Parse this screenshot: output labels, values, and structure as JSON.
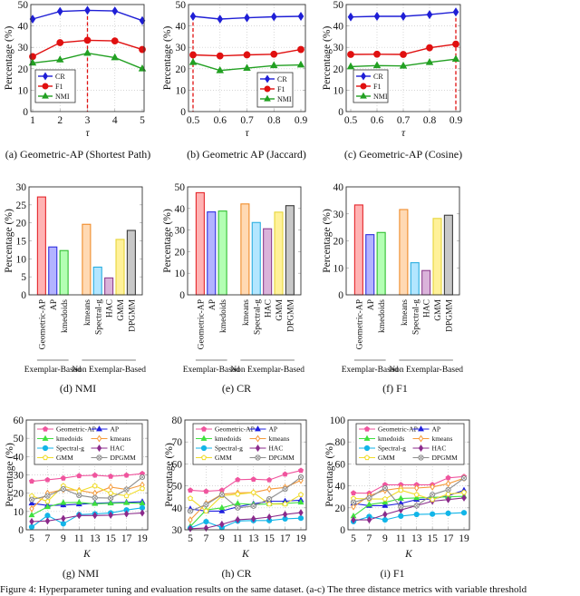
{
  "figure_caption": "Figure 4: Hyperparameter tuning and evaluation results on the same dataset. (a-c) The three distance metrics with variable threshold",
  "chart_data": [
    {
      "type": "line",
      "caption": "(a) Geometric-AP (Shortest Path)",
      "xlabel": "τ",
      "ylabel": "Percentage (%)",
      "x": [
        1,
        2,
        3,
        4,
        5
      ],
      "xticks": [
        "1",
        "2",
        "3",
        "4",
        "5"
      ],
      "xlim": [
        1,
        5
      ],
      "ylim": [
        0,
        50
      ],
      "yticks": [
        0,
        10,
        20,
        30,
        40,
        50
      ],
      "grid": true,
      "legend": "bottom-left",
      "highlight_x": 3,
      "series": [
        {
          "name": "CR",
          "values": [
            43.2,
            46.8,
            47.3,
            47.0,
            42.5
          ],
          "color": "#1f1fd6",
          "marker": "diamond"
        },
        {
          "name": "F1",
          "values": [
            25.7,
            32.2,
            33.3,
            33.0,
            29.0
          ],
          "color": "#e01010",
          "marker": "circle"
        },
        {
          "name": "NMI",
          "values": [
            22.7,
            24.2,
            27.3,
            25.2,
            20.0
          ],
          "color": "#22a022",
          "marker": "triangle"
        }
      ]
    },
    {
      "type": "line",
      "caption": "(b) Geometric AP (Jaccard)",
      "xlabel": "τ",
      "ylabel": "Percentage (%)",
      "x": [
        0.5,
        0.6,
        0.7,
        0.8,
        0.9
      ],
      "xticks": [
        "0.5",
        "0.6",
        "0.7",
        "0.8",
        "0.9"
      ],
      "xlim": [
        0.5,
        0.9
      ],
      "ylim": [
        0,
        50
      ],
      "yticks": [
        0,
        10,
        20,
        30,
        40,
        50
      ],
      "grid": true,
      "legend": "bottom-right",
      "highlight_x": 0.5,
      "series": [
        {
          "name": "CR",
          "values": [
            44.5,
            43.2,
            43.8,
            44.3,
            44.5
          ],
          "color": "#1f1fd6",
          "marker": "diamond"
        },
        {
          "name": "F1",
          "values": [
            26.5,
            26.0,
            26.5,
            26.8,
            29.0
          ],
          "color": "#e01010",
          "marker": "circle"
        },
        {
          "name": "NMI",
          "values": [
            23.0,
            19.2,
            20.3,
            21.5,
            21.8
          ],
          "color": "#22a022",
          "marker": "triangle"
        }
      ]
    },
    {
      "type": "line",
      "caption": "(c) Geometric-AP (Cosine)",
      "xlabel": "τ",
      "ylabel": "Percentage (%)",
      "x": [
        0.5,
        0.6,
        0.7,
        0.8,
        0.9
      ],
      "xticks": [
        "0.5",
        "0.6",
        "0.7",
        "0.8",
        "0.9"
      ],
      "xlim": [
        0.5,
        0.9
      ],
      "ylim": [
        0,
        50
      ],
      "yticks": [
        0,
        10,
        20,
        30,
        40,
        50
      ],
      "grid": true,
      "legend": "bottom-left",
      "highlight_x": 0.9,
      "series": [
        {
          "name": "CR",
          "values": [
            44.2,
            44.5,
            44.5,
            45.3,
            46.5
          ],
          "color": "#1f1fd6",
          "marker": "diamond"
        },
        {
          "name": "F1",
          "values": [
            26.7,
            26.8,
            26.7,
            29.8,
            31.5
          ],
          "color": "#e01010",
          "marker": "circle"
        },
        {
          "name": "NMI",
          "values": [
            21.0,
            21.5,
            21.3,
            23.0,
            24.5
          ],
          "color": "#22a022",
          "marker": "triangle"
        }
      ]
    },
    {
      "type": "bar",
      "caption": "(d) NMI",
      "ylabel": "Percentage (%)",
      "ylim": [
        0,
        30
      ],
      "yticks": [
        0,
        5,
        10,
        15,
        20,
        25,
        30
      ],
      "categories": [
        "Geometric-AP",
        "AP",
        "kmedoids",
        "kmeans",
        "Spectral-g",
        "HAC",
        "GMM",
        "DPGMM"
      ],
      "values": [
        27.2,
        13.3,
        12.3,
        19.6,
        7.7,
        4.7,
        15.4,
        17.9
      ],
      "groups": [
        {
          "label": "Exemplar-Based",
          "count": 3
        },
        {
          "label": "Non Exemplar-Based",
          "count": 5
        }
      ]
    },
    {
      "type": "bar",
      "caption": "(e) CR",
      "ylabel": "Percentage (%)",
      "ylim": [
        0,
        50
      ],
      "yticks": [
        0,
        10,
        20,
        30,
        40,
        50
      ],
      "categories": [
        "Geometric-AP",
        "AP",
        "kmedoids",
        "kmeans",
        "Spectral-g",
        "HAC",
        "GMM",
        "DPGMM"
      ],
      "values": [
        47.3,
        38.4,
        38.8,
        42.1,
        33.5,
        30.6,
        38.3,
        41.3
      ],
      "groups": [
        {
          "label": "Exemplar-Based",
          "count": 3
        },
        {
          "label": "Non Exemplar-Based",
          "count": 5
        }
      ]
    },
    {
      "type": "bar",
      "caption": "(f) F1",
      "ylabel": "Percentage (%)",
      "ylim": [
        0,
        40
      ],
      "yticks": [
        0,
        10,
        20,
        30,
        40
      ],
      "categories": [
        "Geometric-AP",
        "AP",
        "kmedoids",
        "kmeans",
        "Spectral-g",
        "HAC",
        "GMM",
        "DPGMM"
      ],
      "values": [
        33.3,
        22.3,
        23.1,
        31.6,
        11.9,
        9.0,
        28.3,
        29.5
      ],
      "groups": [
        {
          "label": "Exemplar-Based",
          "count": 3
        },
        {
          "label": "Non Exemplar-Based",
          "count": 5
        }
      ]
    },
    {
      "type": "line",
      "caption": "(g) NMI",
      "xlabel": "K",
      "ylabel": "Percentage (%)",
      "x": [
        5,
        7,
        9,
        11,
        13,
        15,
        17,
        19
      ],
      "xticks": [
        "5",
        "7",
        "9",
        "11",
        "13",
        "15",
        "17",
        "19"
      ],
      "xlim": [
        5,
        19
      ],
      "ylim": [
        0,
        60
      ],
      "yticks": [
        0,
        10,
        20,
        30,
        40,
        50,
        60
      ],
      "grid": true,
      "legend": "top",
      "series": [
        {
          "name": "Geometric-AP",
          "values": [
            26.5,
            27.3,
            28.2,
            29.5,
            29.8,
            29.2,
            29.8,
            30.7
          ],
          "color": "#f0559e",
          "marker": "pentagon"
        },
        {
          "name": "AP",
          "values": [
            14.5,
            13.3,
            13.5,
            14.0,
            14.5,
            14.8,
            15.0,
            15.3
          ],
          "color": "#1f1fe0",
          "marker": "triangle"
        },
        {
          "name": "kmedoids",
          "values": [
            8.0,
            12.5,
            14.8,
            15.0,
            14.2,
            14.5,
            14.7,
            14.5
          ],
          "color": "#3fe03f",
          "marker": "triangle"
        },
        {
          "name": "kmeans",
          "values": [
            11.5,
            20.0,
            22.0,
            21.5,
            20.0,
            23.3,
            22.0,
            24.5
          ],
          "color": "#f59a3a",
          "marker": "diamond-open"
        },
        {
          "name": "Spectral-g",
          "values": [
            1.5,
            7.8,
            3.3,
            8.3,
            8.7,
            9.2,
            10.8,
            12.0
          ],
          "color": "#12b5e8",
          "marker": "circle"
        },
        {
          "name": "HAC",
          "values": [
            4.5,
            4.8,
            6.2,
            7.8,
            7.8,
            8.0,
            8.7,
            9.2
          ],
          "color": "#8b2a8b",
          "marker": "diamond"
        },
        {
          "name": "GMM",
          "values": [
            18.5,
            15.5,
            24.0,
            21.0,
            24.0,
            20.0,
            18.5,
            22.5
          ],
          "color": "#f0dc2a",
          "marker": "pentagon-open"
        },
        {
          "name": "DPGMM",
          "values": [
            16.5,
            18.5,
            22.3,
            18.8,
            17.5,
            17.3,
            22.0,
            28.8
          ],
          "color": "#8c8c8c",
          "marker": "otimes"
        }
      ]
    },
    {
      "type": "line",
      "caption": "(h) CR",
      "xlabel": "K",
      "ylabel": "Percentage (%)",
      "x": [
        5,
        7,
        9,
        11,
        13,
        15,
        17,
        19
      ],
      "xticks": [
        "5",
        "7",
        "9",
        "11",
        "13",
        "15",
        "17",
        "19"
      ],
      "xlim": [
        5,
        19
      ],
      "ylim": [
        30,
        80
      ],
      "yticks": [
        30,
        40,
        50,
        60,
        70,
        80
      ],
      "grid": true,
      "legend": "top",
      "series": [
        {
          "name": "Geometric-AP",
          "values": [
            48.0,
            47.5,
            48.0,
            52.8,
            53.0,
            52.7,
            55.3,
            57.0
          ],
          "color": "#f0559e",
          "marker": "pentagon"
        },
        {
          "name": "AP",
          "values": [
            39.5,
            38.5,
            38.5,
            40.5,
            41.8,
            43.0,
            43.0,
            43.5
          ],
          "color": "#1f1fe0",
          "marker": "triangle"
        },
        {
          "name": "kmedoids",
          "values": [
            31.5,
            39.0,
            40.0,
            42.0,
            41.5,
            41.8,
            42.0,
            42.5
          ],
          "color": "#3fe03f",
          "marker": "triangle"
        },
        {
          "name": "kmeans",
          "values": [
            34.5,
            42.0,
            46.2,
            46.8,
            47.0,
            48.5,
            49.3,
            52.5
          ],
          "color": "#f59a3a",
          "marker": "diamond-open"
        },
        {
          "name": "Spectral-g",
          "values": [
            30.8,
            33.7,
            31.0,
            34.0,
            34.2,
            34.2,
            35.0,
            35.3
          ],
          "color": "#12b5e8",
          "marker": "circle"
        },
        {
          "name": "HAC",
          "values": [
            30.5,
            30.8,
            32.5,
            34.6,
            35.0,
            35.8,
            37.0,
            37.8
          ],
          "color": "#8b2a8b",
          "marker": "diamond"
        },
        {
          "name": "GMM",
          "values": [
            44.3,
            38.5,
            45.5,
            46.2,
            47.0,
            41.7,
            41.7,
            46.0
          ],
          "color": "#f0dc2a",
          "marker": "pentagon-open"
        },
        {
          "name": "DPGMM",
          "values": [
            38.5,
            41.5,
            46.0,
            40.0,
            40.8,
            44.0,
            48.5,
            54.0
          ],
          "color": "#8c8c8c",
          "marker": "otimes"
        }
      ]
    },
    {
      "type": "line",
      "caption": "(i) F1",
      "xlabel": "K",
      "ylabel": "Percentage (%)",
      "x": [
        5,
        7,
        9,
        11,
        13,
        15,
        17,
        19
      ],
      "xticks": [
        "5",
        "7",
        "9",
        "11",
        "13",
        "15",
        "17",
        "19"
      ],
      "xlim": [
        5,
        19
      ],
      "ylim": [
        0,
        100
      ],
      "yticks": [
        0,
        20,
        40,
        60,
        80,
        100
      ],
      "grid": true,
      "legend": "top",
      "series": [
        {
          "name": "Geometric-AP",
          "values": [
            33.5,
            33.3,
            41.0,
            41.0,
            41.0,
            41.0,
            47.3,
            48.5
          ],
          "color": "#f0559e",
          "marker": "pentagon"
        },
        {
          "name": "AP",
          "values": [
            24.0,
            22.0,
            22.0,
            24.0,
            27.5,
            28.0,
            31.0,
            36.0
          ],
          "color": "#1f1fe0",
          "marker": "triangle"
        },
        {
          "name": "kmedoids",
          "values": [
            12.5,
            23.0,
            25.0,
            28.5,
            29.0,
            29.5,
            30.0,
            30.5
          ],
          "color": "#3fe03f",
          "marker": "triangle"
        },
        {
          "name": "kmeans",
          "values": [
            21.0,
            31.0,
            36.0,
            38.0,
            38.0,
            39.0,
            42.0,
            47.0
          ],
          "color": "#f59a3a",
          "marker": "diamond-open"
        },
        {
          "name": "Spectral-g",
          "values": [
            7.5,
            12.0,
            9.0,
            12.5,
            14.0,
            14.3,
            15.0,
            15.5
          ],
          "color": "#12b5e8",
          "marker": "circle"
        },
        {
          "name": "HAC",
          "values": [
            9.0,
            9.0,
            14.0,
            18.0,
            22.0,
            26.0,
            27.5,
            29.0
          ],
          "color": "#8b2a8b",
          "marker": "diamond"
        },
        {
          "name": "GMM",
          "values": [
            28.5,
            28.0,
            28.0,
            36.0,
            32.0,
            27.5,
            32.5,
            34.0
          ],
          "color": "#f0dc2a",
          "marker": "pentagon-open"
        },
        {
          "name": "DPGMM",
          "values": [
            25.0,
            29.0,
            38.0,
            21.0,
            22.0,
            32.0,
            36.5,
            47.0
          ],
          "color": "#8c8c8c",
          "marker": "otimes"
        }
      ]
    }
  ],
  "bar_colors": [
    {
      "fill": "#ffb3b3",
      "stroke": "#e5262b"
    },
    {
      "fill": "#b3b3ff",
      "stroke": "#2f2fe0"
    },
    {
      "fill": "#b3ffb3",
      "stroke": "#2fbf2f"
    },
    {
      "fill": "#ffd9b3",
      "stroke": "#f08c2a"
    },
    {
      "fill": "#b3e6ff",
      "stroke": "#2aaee0"
    },
    {
      "fill": "#dab3da",
      "stroke": "#8f3f8f"
    },
    {
      "fill": "#fff199",
      "stroke": "#e6d53a"
    },
    {
      "fill": "#c8c8c8",
      "stroke": "#3c3c3c"
    }
  ],
  "highlight_color": "#e01010"
}
